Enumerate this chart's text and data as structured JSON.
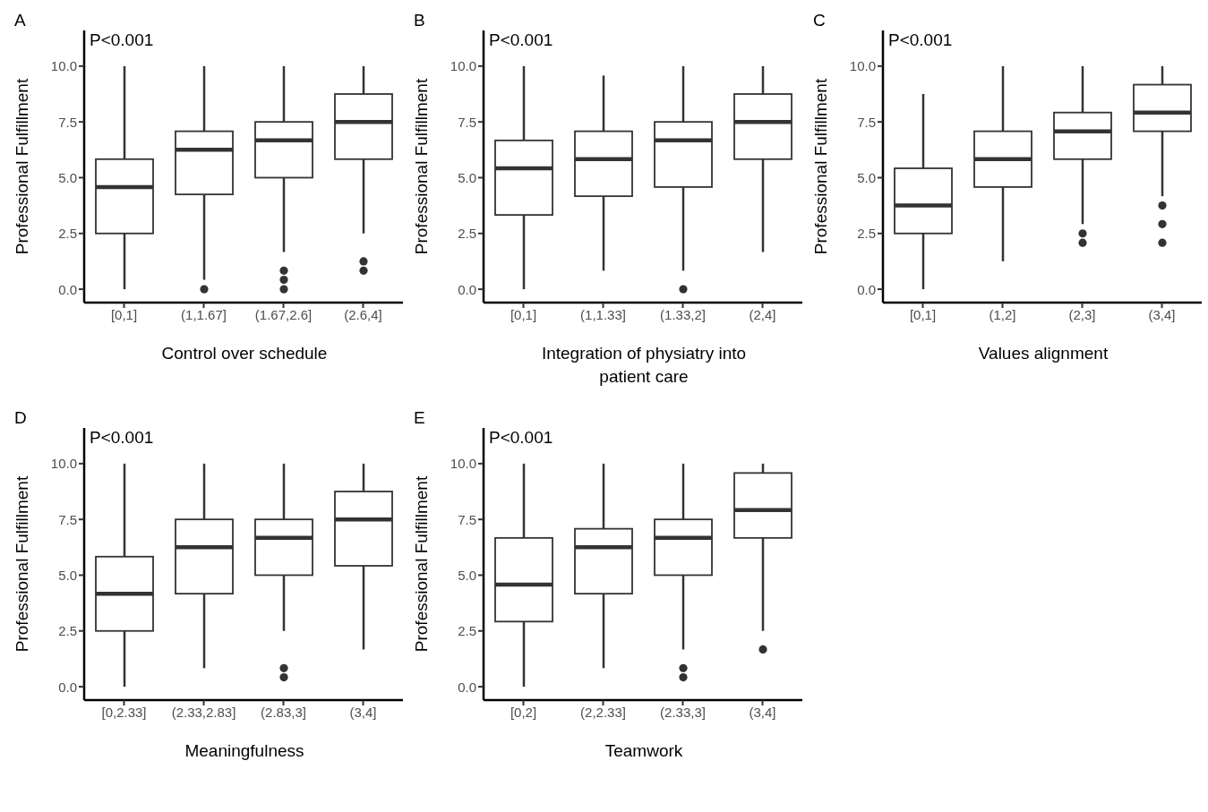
{
  "chart_data": [
    {
      "type": "box",
      "title": "A",
      "xlabel": "Control over schedule",
      "ylabel": "Professional Fulfillment",
      "annotations": [
        "P<0.001"
      ],
      "categories": [
        "[0,1]",
        "(1,1.67]",
        "(1.67,2.6]",
        "(2.6,4]"
      ],
      "ylim": [
        -0.6,
        11.6
      ],
      "yticks": [
        {
          "value": 0,
          "label": "0.0"
        },
        {
          "value": 2.5,
          "label": "2.5"
        },
        {
          "value": 5,
          "label": "5.0"
        },
        {
          "value": 7.5,
          "label": "7.5"
        },
        {
          "value": 10,
          "label": "10.0"
        }
      ],
      "series": [
        {
          "color": "#333333",
          "boxes": [
            {
              "low": 0,
              "q1": 2.5,
              "median": 4.58,
              "q3": 5.83,
              "high": 10
            },
            {
              "low": 0.42,
              "q1": 4.25,
              "median": 6.25,
              "q3": 7.08,
              "high": 10,
              "outliers": [
                0
              ]
            },
            {
              "low": 1.67,
              "q1": 5.0,
              "median": 6.67,
              "q3": 7.5,
              "high": 10,
              "outliers": [
                0.83,
                0.42,
                0
              ]
            },
            {
              "low": 2.5,
              "q1": 5.83,
              "median": 7.5,
              "q3": 8.75,
              "high": 10,
              "outliers": [
                1.25,
                0.83
              ]
            }
          ]
        }
      ]
    },
    {
      "type": "box",
      "title": "B",
      "xlabel": "Integration of physiatry into patient care",
      "ylabel": "Professional Fulfillment",
      "annotations": [
        "P<0.001"
      ],
      "categories": [
        "[0,1]",
        "(1,1.33]",
        "(1.33,2]",
        "(2,4]"
      ],
      "ylim": [
        -0.6,
        11.6
      ],
      "yticks": [
        {
          "value": 0,
          "label": "0.0"
        },
        {
          "value": 2.5,
          "label": "2.5"
        },
        {
          "value": 5,
          "label": "5.0"
        },
        {
          "value": 7.5,
          "label": "7.5"
        },
        {
          "value": 10,
          "label": "10.0"
        }
      ],
      "series": [
        {
          "color": "#333333",
          "boxes": [
            {
              "low": 0,
              "q1": 3.33,
              "median": 5.42,
              "q3": 6.67,
              "high": 10
            },
            {
              "low": 0.83,
              "q1": 4.17,
              "median": 5.83,
              "q3": 7.08,
              "high": 9.58
            },
            {
              "low": 0.83,
              "q1": 4.58,
              "median": 6.67,
              "q3": 7.5,
              "high": 10,
              "outliers": [
                0
              ]
            },
            {
              "low": 1.67,
              "q1": 5.83,
              "median": 7.5,
              "q3": 8.75,
              "high": 10
            }
          ]
        }
      ]
    },
    {
      "type": "box",
      "title": "C",
      "xlabel": "Values alignment",
      "ylabel": "Professional Fulfillment",
      "annotations": [
        "P<0.001"
      ],
      "categories": [
        "[0,1]",
        "(1,2]",
        "(2,3]",
        "(3,4]"
      ],
      "ylim": [
        -0.6,
        11.6
      ],
      "yticks": [
        {
          "value": 0,
          "label": "0.0"
        },
        {
          "value": 2.5,
          "label": "2.5"
        },
        {
          "value": 5,
          "label": "5.0"
        },
        {
          "value": 7.5,
          "label": "7.5"
        },
        {
          "value": 10,
          "label": "10.0"
        }
      ],
      "series": [
        {
          "color": "#333333",
          "boxes": [
            {
              "low": 0,
              "q1": 2.5,
              "median": 3.75,
              "q3": 5.42,
              "high": 8.75
            },
            {
              "low": 1.25,
              "q1": 4.58,
              "median": 5.83,
              "q3": 7.08,
              "high": 10
            },
            {
              "low": 2.92,
              "q1": 5.83,
              "median": 7.08,
              "q3": 7.92,
              "high": 10,
              "outliers": [
                2.5,
                2.08
              ]
            },
            {
              "low": 4.17,
              "q1": 7.08,
              "median": 7.92,
              "q3": 9.17,
              "high": 10,
              "outliers": [
                3.75,
                2.92,
                2.08
              ]
            }
          ]
        }
      ]
    },
    {
      "type": "box",
      "title": "D",
      "xlabel": "Meaningfulness",
      "ylabel": "Professional Fulfillment",
      "annotations": [
        "P<0.001"
      ],
      "categories": [
        "[0,2.33]",
        "(2.33,2.83]",
        "(2.83,3]",
        "(3,4]"
      ],
      "ylim": [
        -0.6,
        11.6
      ],
      "yticks": [
        {
          "value": 0,
          "label": "0.0"
        },
        {
          "value": 2.5,
          "label": "2.5"
        },
        {
          "value": 5,
          "label": "5.0"
        },
        {
          "value": 7.5,
          "label": "7.5"
        },
        {
          "value": 10,
          "label": "10.0"
        }
      ],
      "series": [
        {
          "color": "#333333",
          "boxes": [
            {
              "low": 0,
              "q1": 2.5,
              "median": 4.17,
              "q3": 5.83,
              "high": 10
            },
            {
              "low": 0.83,
              "q1": 4.17,
              "median": 6.25,
              "q3": 7.5,
              "high": 10
            },
            {
              "low": 2.5,
              "q1": 5.0,
              "median": 6.67,
              "q3": 7.5,
              "high": 10,
              "outliers": [
                0.83,
                0.42
              ]
            },
            {
              "low": 1.67,
              "q1": 5.42,
              "median": 7.5,
              "q3": 8.75,
              "high": 10
            }
          ]
        }
      ]
    },
    {
      "type": "box",
      "title": "E",
      "xlabel": "Teamwork",
      "ylabel": "Professional Fulfillment",
      "annotations": [
        "P<0.001"
      ],
      "categories": [
        "[0,2]",
        "(2,2.33]",
        "(2.33,3]",
        "(3,4]"
      ],
      "ylim": [
        -0.6,
        11.6
      ],
      "yticks": [
        {
          "value": 0,
          "label": "0.0"
        },
        {
          "value": 2.5,
          "label": "2.5"
        },
        {
          "value": 5,
          "label": "5.0"
        },
        {
          "value": 7.5,
          "label": "7.5"
        },
        {
          "value": 10,
          "label": "10.0"
        }
      ],
      "series": [
        {
          "color": "#333333",
          "boxes": [
            {
              "low": 0,
              "q1": 2.92,
              "median": 4.58,
              "q3": 6.67,
              "high": 10
            },
            {
              "low": 0.83,
              "q1": 4.17,
              "median": 6.25,
              "q3": 7.08,
              "high": 10
            },
            {
              "low": 1.67,
              "q1": 5.0,
              "median": 6.67,
              "q3": 7.5,
              "high": 10,
              "outliers": [
                0.83,
                0.42
              ]
            },
            {
              "low": 2.5,
              "q1": 6.67,
              "median": 7.92,
              "q3": 9.58,
              "high": 10,
              "outliers": [
                1.67
              ]
            }
          ]
        }
      ]
    }
  ]
}
